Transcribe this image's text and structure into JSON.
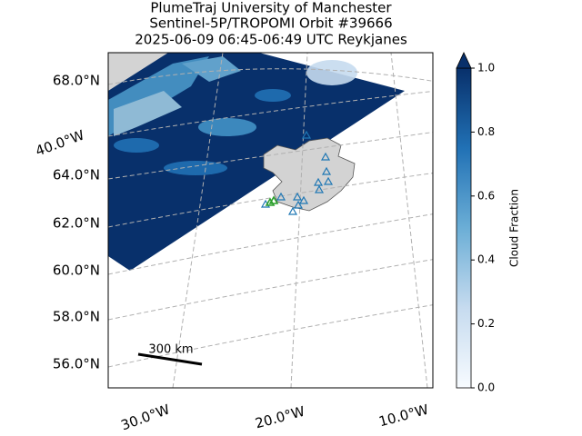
{
  "header": {
    "title_lines": [
      "PlumeTraj    University of Manchester",
      "Sentinel-5P/TROPOMI Orbit #39666",
      "2025-06-09   06:45-06:49 UTC   Reykjanes"
    ]
  },
  "map": {
    "lat_labels": [
      "68.0°N",
      "64.0°N",
      "62.0°N",
      "60.0°N",
      "58.0°N",
      "56.0°N"
    ],
    "lon_labels": [
      "40.0°W",
      "30.0°W",
      "20.0°W",
      "10.0°W"
    ],
    "scale_bar": "300 km"
  },
  "colorbar": {
    "label": "Cloud Fraction",
    "lim": [
      0,
      1
    ],
    "ticks": [
      {
        "value": 0,
        "label": "0.0"
      },
      {
        "value": 0.2,
        "label": "0.2"
      },
      {
        "value": 0.4,
        "label": "0.4"
      },
      {
        "value": 0.6,
        "label": "0.6"
      },
      {
        "value": 0.8,
        "label": "0.8"
      },
      {
        "value": 1,
        "label": "1.0"
      }
    ]
  }
}
